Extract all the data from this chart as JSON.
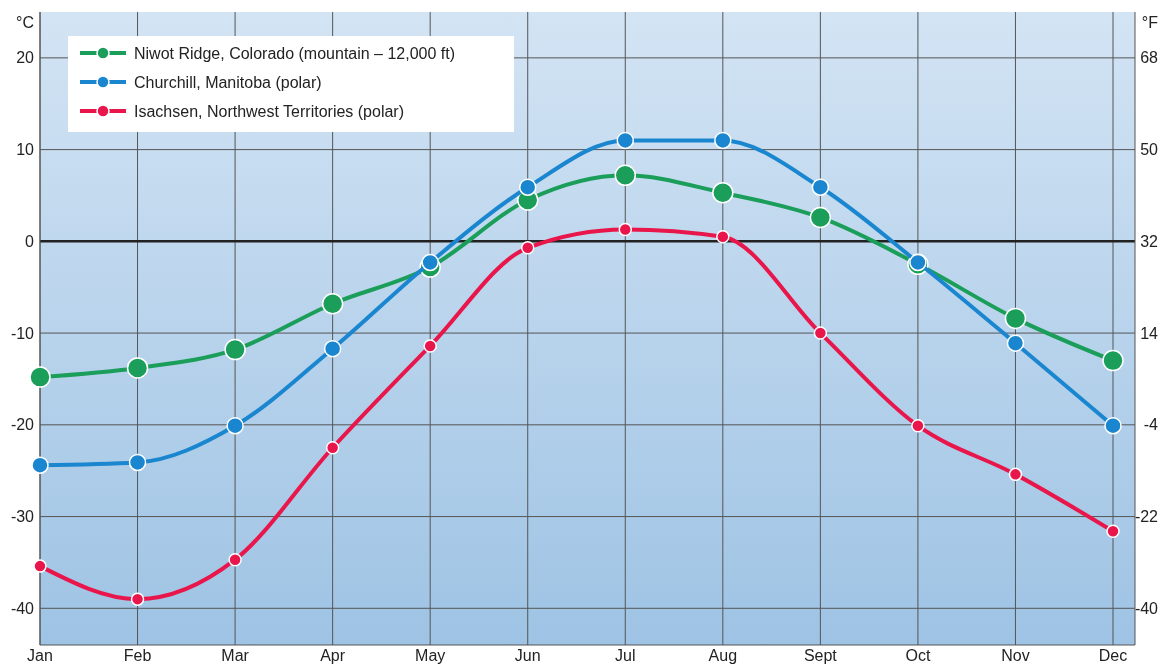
{
  "chart_data": {
    "type": "line",
    "ylabel": "°C",
    "y2label": "°F",
    "categories": [
      "Jan",
      "Feb",
      "Mar",
      "Apr",
      "May",
      "Jun",
      "Jul",
      "Aug",
      "Sept",
      "Oct",
      "Nov",
      "Dec"
    ],
    "ylim": [
      -44,
      25
    ],
    "yticks": [
      -40,
      -30,
      -20,
      -10,
      0,
      10,
      20
    ],
    "y2lim": [
      -47.2,
      77
    ],
    "y2ticks": [
      -40,
      -22,
      -4,
      14,
      32,
      50,
      68
    ],
    "series": [
      {
        "name": "Niwot Ridge, Colorado (mountain – 12,000 ft)",
        "color": "#1a9e5a",
        "values": [
          -14.8,
          -13.8,
          -11.8,
          -6.8,
          -2.8,
          4.5,
          7.2,
          5.3,
          2.6,
          -2.5,
          -8.4,
          -13.0
        ]
      },
      {
        "name": "Churchill, Manitoba (polar)",
        "color": "#1a86cf",
        "values": [
          -24.4,
          -24.1,
          -20.1,
          -11.7,
          -2.3,
          5.9,
          11.0,
          11.0,
          5.9,
          -2.3,
          -11.1,
          -20.1
        ]
      },
      {
        "name": "Isachsen, Northwest Territories (polar)",
        "color": "#e8164a",
        "values": [
          -35.4,
          -39.0,
          -34.7,
          -22.5,
          -11.4,
          -0.7,
          1.3,
          0.5,
          -10.0,
          -20.1,
          -25.4,
          -31.6
        ]
      }
    ],
    "ref_lines": [
      {
        "axis": "y",
        "value": 0,
        "color": "#222222"
      }
    ],
    "grid": true,
    "legend": "top left",
    "marker": "circle",
    "line_style": "solid"
  }
}
